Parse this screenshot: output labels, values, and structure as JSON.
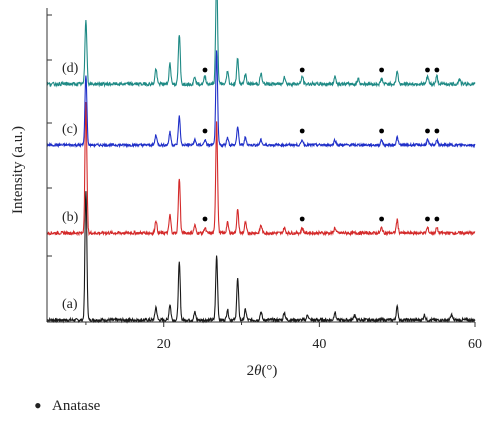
{
  "chart_data": {
    "type": "line",
    "title": "",
    "xlabel": "2θ(°)",
    "ylabel": "Intensity (a.u.)",
    "xlim": [
      5,
      60
    ],
    "x_ticks": [
      20,
      40,
      60
    ],
    "x_tick_labels": [
      "20",
      "40",
      "60"
    ],
    "y_ticks_visible_labels": false,
    "grid": false,
    "legend": {
      "placement": "bottom-left",
      "marker": "•",
      "label": "Anatase"
    },
    "anatase_marker_2theta": [
      25.3,
      37.8,
      48.0,
      53.9,
      55.1
    ],
    "series": [
      {
        "name": "(a)",
        "color": "#1a1a1a",
        "baseline": 0,
        "noise": 1.2,
        "peaks": [
          [
            10.0,
            50
          ],
          [
            19.0,
            5
          ],
          [
            20.8,
            6
          ],
          [
            22.0,
            22
          ],
          [
            24.0,
            3
          ],
          [
            26.8,
            25
          ],
          [
            28.2,
            4
          ],
          [
            29.5,
            16
          ],
          [
            30.5,
            4
          ],
          [
            32.5,
            3
          ],
          [
            35.5,
            3
          ],
          [
            38.5,
            2
          ],
          [
            42.0,
            3
          ],
          [
            44.5,
            2
          ],
          [
            50.0,
            5
          ],
          [
            53.5,
            2
          ],
          [
            57.0,
            2
          ]
        ],
        "anatase_markers": false
      },
      {
        "name": "(b)",
        "color": "#d42a2a",
        "baseline": 0,
        "noise": 1.2,
        "peaks": [
          [
            10.0,
            50
          ],
          [
            19.0,
            5
          ],
          [
            20.8,
            7
          ],
          [
            22.0,
            21
          ],
          [
            24.0,
            3
          ],
          [
            25.3,
            2
          ],
          [
            26.8,
            43
          ],
          [
            28.2,
            4
          ],
          [
            29.5,
            9
          ],
          [
            30.5,
            4
          ],
          [
            32.5,
            3
          ],
          [
            35.5,
            2
          ],
          [
            37.8,
            2
          ],
          [
            42.0,
            2
          ],
          [
            48.0,
            2
          ],
          [
            50.0,
            5
          ],
          [
            53.9,
            2
          ],
          [
            55.1,
            2
          ]
        ],
        "anatase_markers": true
      },
      {
        "name": "(c)",
        "color": "#1f2fc8",
        "baseline": 0,
        "noise": 1.0,
        "peaks": [
          [
            10.0,
            27
          ],
          [
            19.0,
            4
          ],
          [
            20.8,
            5
          ],
          [
            22.0,
            11
          ],
          [
            24.0,
            2
          ],
          [
            25.3,
            2
          ],
          [
            26.8,
            36
          ],
          [
            28.2,
            3
          ],
          [
            29.5,
            7
          ],
          [
            30.5,
            3
          ],
          [
            32.5,
            2
          ],
          [
            37.8,
            2
          ],
          [
            42.0,
            2
          ],
          [
            48.0,
            2
          ],
          [
            50.0,
            3
          ],
          [
            53.9,
            2
          ],
          [
            55.1,
            2
          ]
        ],
        "anatase_markers": true
      },
      {
        "name": "(d)",
        "color": "#1f8a85",
        "baseline": 0,
        "noise": 1.3,
        "peaks": [
          [
            10.0,
            25
          ],
          [
            19.0,
            6
          ],
          [
            20.8,
            8
          ],
          [
            22.0,
            19
          ],
          [
            24.0,
            3
          ],
          [
            25.3,
            3
          ],
          [
            26.8,
            43
          ],
          [
            28.2,
            5
          ],
          [
            29.5,
            10
          ],
          [
            30.5,
            4
          ],
          [
            32.5,
            4
          ],
          [
            35.5,
            3
          ],
          [
            37.8,
            3
          ],
          [
            42.0,
            3
          ],
          [
            45.0,
            2
          ],
          [
            48.0,
            2
          ],
          [
            50.0,
            5
          ],
          [
            53.9,
            3
          ],
          [
            55.1,
            3
          ],
          [
            58.0,
            2
          ]
        ],
        "anatase_markers": true
      }
    ]
  }
}
